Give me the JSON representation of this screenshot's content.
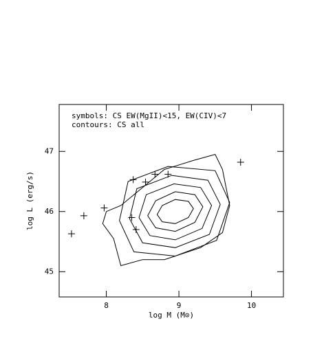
{
  "chart_data": {
    "type": "scatter",
    "annotations": [
      "symbols:  CS EW(MgII)<15, EW(CIV)<7",
      "contours:  CS all"
    ],
    "xlabel": "log M (M⊙)",
    "ylabel": "log L (erg/s)",
    "xlim": [
      7.35,
      10.44
    ],
    "ylim": [
      44.58,
      47.78
    ],
    "xticks": [
      8,
      9,
      10
    ],
    "yticks": [
      45,
      46,
      47
    ],
    "x": [
      7.52,
      7.69,
      7.97,
      8.35,
      8.41,
      8.37,
      8.54,
      8.67,
      8.85,
      9.85
    ],
    "values": [
      45.63,
      45.93,
      46.06,
      45.9,
      45.7,
      46.53,
      46.49,
      46.62,
      46.62,
      46.82
    ],
    "contours": [
      {
        "x": [
          8.0,
          7.95,
          8.1,
          8.2,
          8.5,
          8.8,
          9.3,
          9.6,
          9.7,
          9.6,
          9.5,
          9.2,
          8.8,
          8.4,
          8.2
        ],
        "y": [
          46.0,
          45.8,
          45.55,
          45.1,
          45.2,
          45.2,
          45.4,
          45.65,
          46.1,
          46.7,
          46.95,
          46.85,
          46.7,
          46.3,
          46.1
        ]
      },
      {
        "x": [
          9.7,
          9.5,
          8.85,
          8.3,
          8.18,
          8.38,
          8.95,
          9.52
        ],
        "y": [
          46.15,
          46.68,
          46.75,
          46.5,
          45.85,
          45.33,
          45.26,
          45.52
        ]
      },
      {
        "x": [
          9.57,
          9.4,
          8.9,
          8.42,
          8.32,
          8.5,
          8.95,
          9.42
        ],
        "y": [
          46.12,
          46.52,
          46.6,
          46.38,
          45.88,
          45.48,
          45.4,
          45.62
        ]
      },
      {
        "x": [
          9.45,
          9.3,
          8.93,
          8.55,
          8.45,
          8.6,
          8.95,
          9.32
        ],
        "y": [
          46.1,
          46.4,
          46.46,
          46.28,
          45.9,
          45.6,
          45.53,
          45.72
        ]
      },
      {
        "x": [
          9.33,
          9.22,
          8.95,
          8.68,
          8.57,
          8.68,
          8.95,
          9.22
        ],
        "y": [
          46.08,
          46.28,
          46.33,
          46.18,
          45.93,
          45.73,
          45.67,
          45.82
        ]
      },
      {
        "x": [
          9.2,
          9.13,
          8.95,
          8.77,
          8.7,
          8.77,
          8.95,
          9.13
        ],
        "y": [
          46.05,
          46.17,
          46.2,
          46.1,
          45.95,
          45.83,
          45.8,
          45.9
        ]
      }
    ],
    "color": "#000000"
  }
}
